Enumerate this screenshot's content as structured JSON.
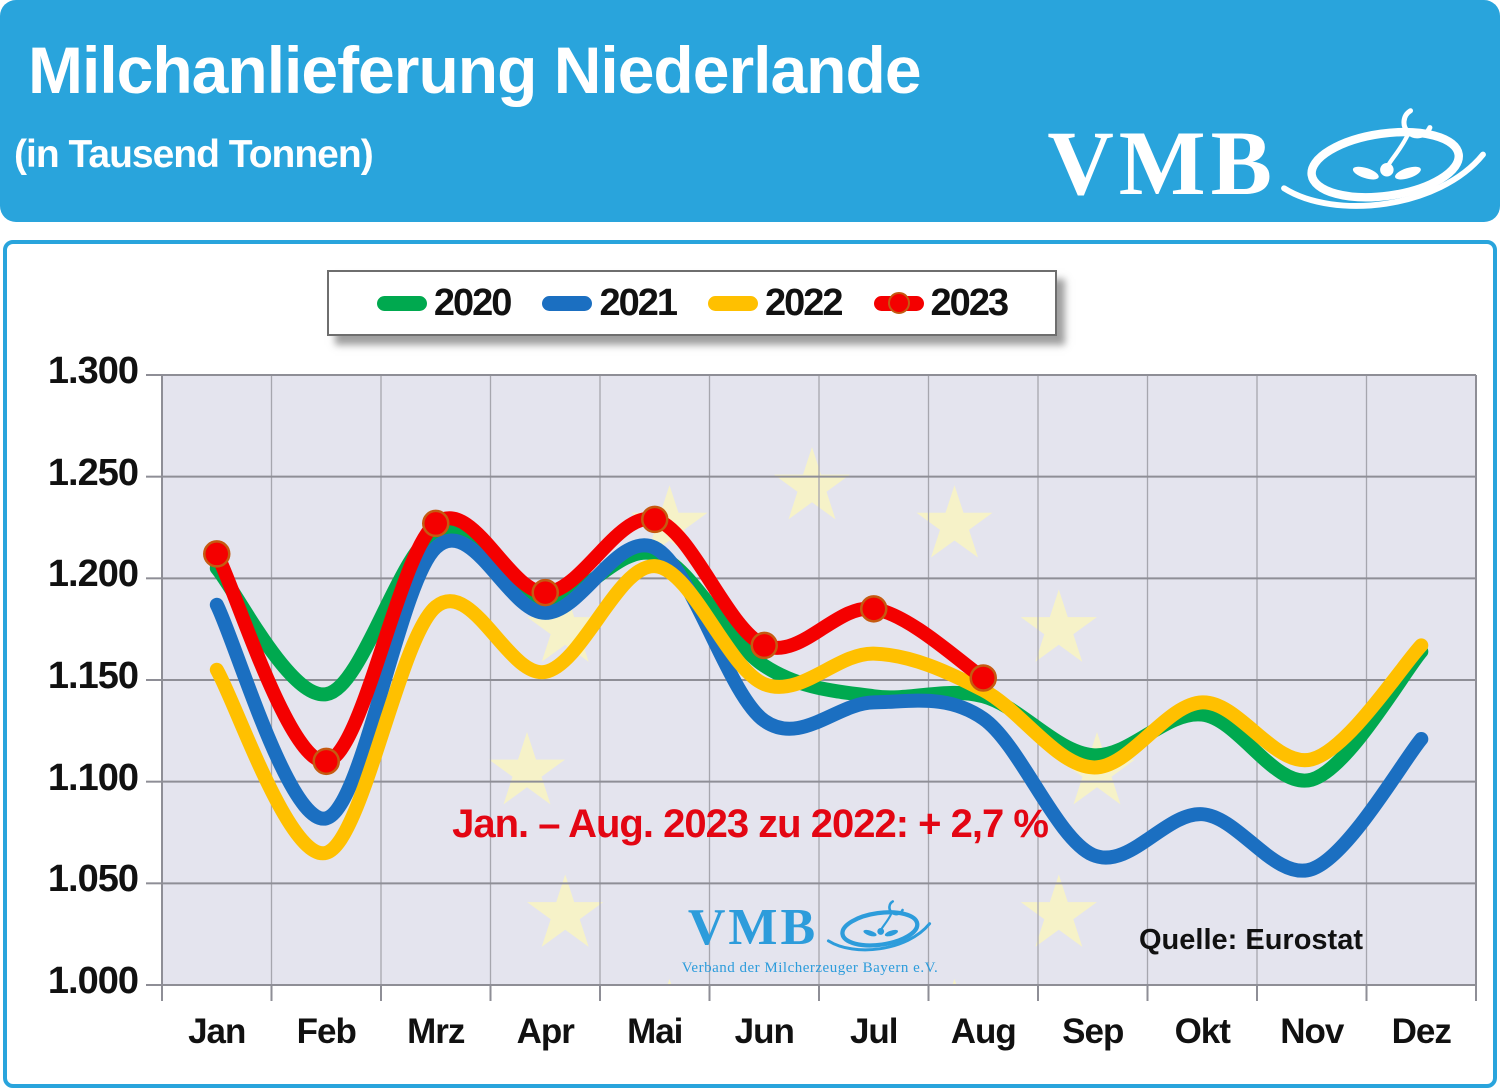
{
  "header": {
    "title": "Milchanlieferung Niederlande",
    "subtitle": "(in Tausend Tonnen)",
    "brand": "VMB"
  },
  "watermark": {
    "brand": "VMB",
    "subtitle": "Verband der Milcherzeuger Bayern e.V."
  },
  "colors": {
    "header_bg": "#29A4DC",
    "panel_border": "#29A4DC",
    "plot_bg": "#E4E4EE",
    "grid": "#8E8E96",
    "grid_minor": "#A6A6AE",
    "star": "#F6F2C8",
    "annotation_red": "#E30613",
    "watermark_blue": "#2D9CDB",
    "marker_ring": "#C55A11"
  },
  "chart_data": {
    "type": "line",
    "title": "Milchanlieferung Niederlande",
    "subtitle": "(in Tausend Tonnen)",
    "unit": "Tausend Tonnen",
    "categories": [
      "Jan",
      "Feb",
      "Mrz",
      "Apr",
      "Mai",
      "Jun",
      "Jul",
      "Aug",
      "Sep",
      "Okt",
      "Nov",
      "Dez"
    ],
    "ylim": [
      1000,
      1300
    ],
    "y_tick_labels": [
      "1.000",
      "1.050",
      "1.100",
      "1.150",
      "1.200",
      "1.250",
      "1.300"
    ],
    "grid": true,
    "legend_position": "top",
    "series": [
      {
        "name": "2020",
        "color": "#00A94F",
        "values": [
          1205,
          1143,
          1222,
          1189,
          1212,
          1157,
          1142,
          1142,
          1113,
          1133,
          1101,
          1164
        ]
      },
      {
        "name": "2021",
        "color": "#1B6FC1",
        "values": [
          1187,
          1082,
          1215,
          1183,
          1215,
          1130,
          1139,
          1131,
          1064,
          1084,
          1057,
          1121
        ]
      },
      {
        "name": "2022",
        "color": "#FFC000",
        "values": [
          1155,
          1065,
          1186,
          1154,
          1206,
          1148,
          1163,
          1145,
          1107,
          1139,
          1111,
          1167
        ]
      },
      {
        "name": "2023",
        "color": "#F40000",
        "marker": true,
        "values": [
          1212,
          1110,
          1227,
          1193,
          1229,
          1167,
          1185,
          1151
        ]
      }
    ],
    "annotation": "Jan. – Aug. 2023 zu 2022: + 2,7 %",
    "source": "Quelle: Eurostat"
  }
}
